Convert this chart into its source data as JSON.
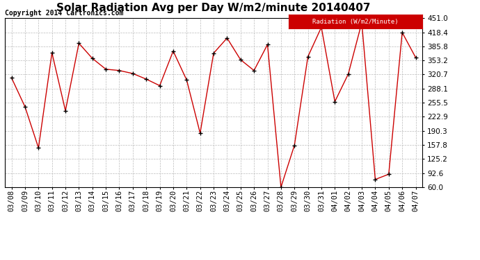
{
  "title": "Solar Radiation Avg per Day W/m2/minute 20140407",
  "copyright": "Copyright 2014 Cartronics.com",
  "legend_label": "Radiation (W/m2/Minute)",
  "dates": [
    "03/08",
    "03/09",
    "03/10",
    "03/11",
    "03/12",
    "03/13",
    "03/14",
    "03/15",
    "03/16",
    "03/17",
    "03/18",
    "03/19",
    "03/20",
    "03/21",
    "03/22",
    "03/23",
    "03/24",
    "03/25",
    "03/26",
    "03/27",
    "03/28",
    "03/29",
    "03/30",
    "03/31",
    "04/01",
    "04/02",
    "04/03",
    "04/04",
    "04/05",
    "04/06",
    "04/07"
  ],
  "values": [
    313,
    246,
    151,
    371,
    237,
    393,
    358,
    333,
    330,
    323,
    310,
    295,
    375,
    308,
    185,
    370,
    405,
    355,
    330,
    390,
    60,
    157,
    362,
    430,
    258,
    322,
    441,
    78,
    90,
    418,
    360
  ],
  "ylim": [
    60.0,
    451.0
  ],
  "yticks": [
    60.0,
    92.6,
    125.2,
    157.8,
    190.3,
    222.9,
    255.5,
    288.1,
    320.7,
    353.2,
    385.8,
    418.4,
    451.0
  ],
  "line_color": "#cc0000",
  "marker_color": "#000000",
  "bg_color": "#ffffff",
  "plot_bg_color": "#ffffff",
  "grid_color": "#bbbbbb",
  "legend_bg": "#cc0000",
  "legend_text_color": "#ffffff",
  "title_fontsize": 11,
  "tick_fontsize": 7.5,
  "copyright_fontsize": 7
}
